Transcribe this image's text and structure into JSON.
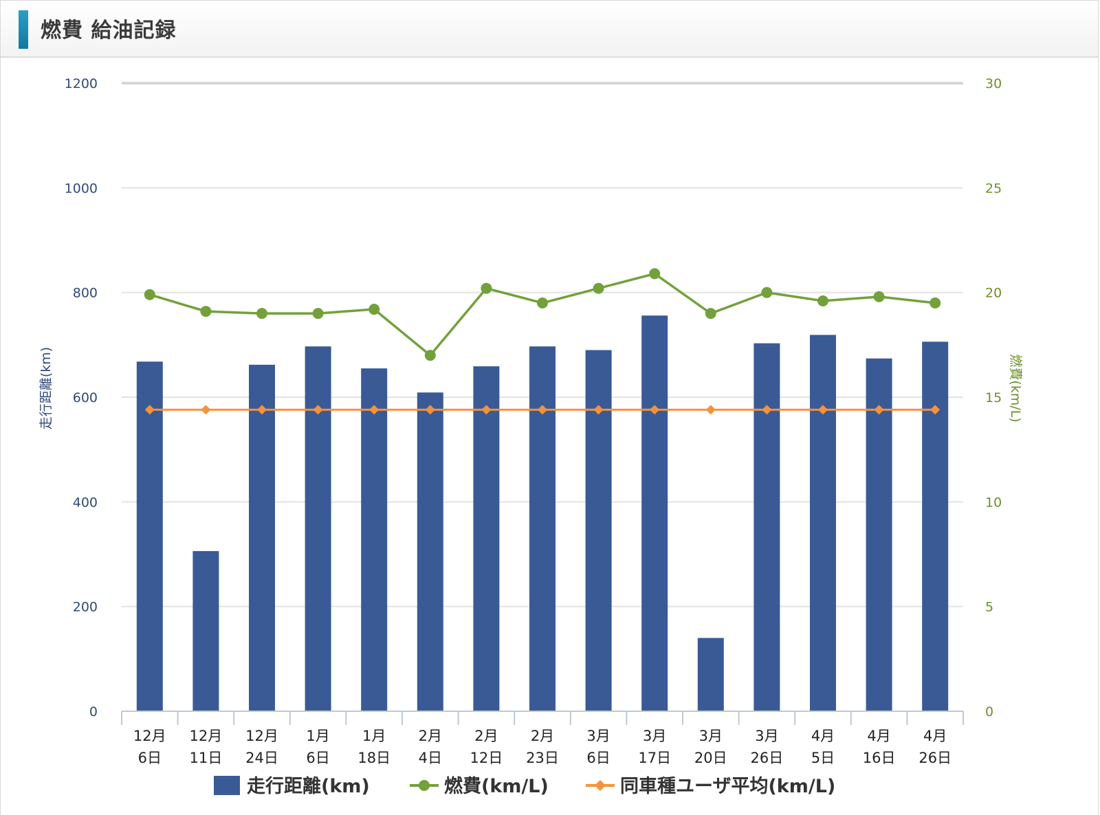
{
  "header": {
    "title": "燃費 給油記録"
  },
  "chart_data": {
    "type": "bar",
    "categories": [
      [
        "12月",
        "6日"
      ],
      [
        "12月",
        "11日"
      ],
      [
        "12月",
        "24日"
      ],
      [
        "1月",
        "6日"
      ],
      [
        "1月",
        "18日"
      ],
      [
        "2月",
        "4日"
      ],
      [
        "2月",
        "12日"
      ],
      [
        "2月",
        "23日"
      ],
      [
        "3月",
        "6日"
      ],
      [
        "3月",
        "17日"
      ],
      [
        "3月",
        "20日"
      ],
      [
        "3月",
        "26日"
      ],
      [
        "4月",
        "5日"
      ],
      [
        "4月",
        "16日"
      ],
      [
        "4月",
        "26日"
      ]
    ],
    "y_left": {
      "label": "走行距離(km)",
      "ylim": [
        0,
        1200
      ],
      "ticks": [
        0,
        200,
        400,
        600,
        800,
        1000,
        1200
      ]
    },
    "y_right": {
      "label": "燃費(km/L)",
      "ylim": [
        0,
        30
      ],
      "ticks": [
        0,
        5,
        10,
        15,
        20,
        25,
        30
      ]
    },
    "series": [
      {
        "name": "走行距離(km)",
        "type": "bar",
        "axis": "left",
        "color": "#3a5a96",
        "values": [
          668,
          306,
          662,
          697,
          655,
          609,
          659,
          697,
          690,
          756,
          140,
          703,
          719,
          674,
          706
        ]
      },
      {
        "name": "燃費(km/L)",
        "type": "line",
        "axis": "right",
        "color": "#72a13b",
        "values": [
          19.9,
          19.1,
          19.0,
          19.0,
          19.2,
          17.0,
          20.2,
          19.5,
          20.2,
          20.9,
          19.0,
          20.0,
          19.6,
          19.8,
          19.5
        ]
      },
      {
        "name": "同車種ユーザ平均(km/L)",
        "type": "line",
        "axis": "right",
        "color": "#f7923a",
        "values": [
          14.4,
          14.4,
          14.4,
          14.4,
          14.4,
          14.4,
          14.4,
          14.4,
          14.4,
          14.4,
          14.4,
          14.4,
          14.4,
          14.4,
          14.4
        ]
      }
    ],
    "grid": true,
    "legend": "bottom"
  }
}
